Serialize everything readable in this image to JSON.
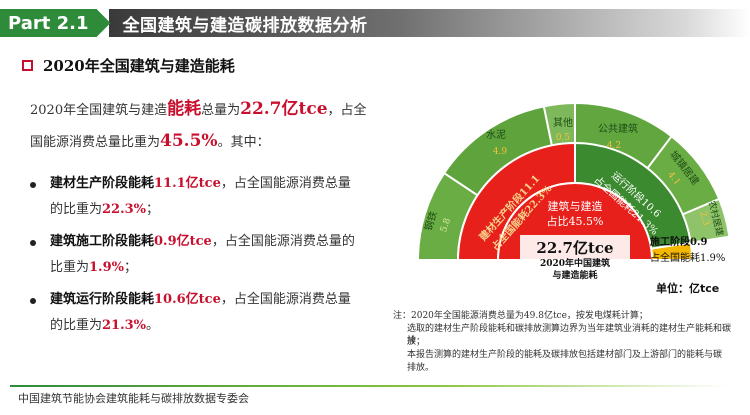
{
  "header": {
    "tag": "Part 2.1",
    "title": "全国建筑与建造碳排放数据分析"
  },
  "section": {
    "title": "2020年全国建筑与建造能耗"
  },
  "intro": {
    "prefix": "2020年全国建筑与建造",
    "keyword": "能耗",
    "mid": "总量为",
    "total": "22.7亿tce",
    "suffix": "，占全",
    "line2_prefix": "国能源消费总量比重为",
    "share": "45.5%",
    "line2_suffix": "。其中："
  },
  "bullets": [
    {
      "title": "建材生产阶段能耗",
      "value": "11.1亿tce",
      "text": "，占全国能源消费总量",
      "line2_prefix": "的比重为",
      "share": "22.3%",
      "line2_suffix": "；"
    },
    {
      "title": "建筑施工阶段能耗",
      "value": "0.9亿tce",
      "text": "，占全国能源消费总量的",
      "line2_prefix": "比重为",
      "share": "1.9%",
      "line2_suffix": "；"
    },
    {
      "title": "建筑运行阶段能耗",
      "value": "10.6亿tce",
      "text": "，占全国能源消费总量",
      "line2_prefix": "的比重为",
      "share": "21.3%",
      "line2_suffix": "。"
    }
  ],
  "chart": {
    "center_line1": "建筑与建造",
    "center_line2": "占比45.5%",
    "total": "22.7亿tce",
    "total_cap1": "2020年中国建筑",
    "total_cap2": "与建造能耗",
    "production_label": "建材生产阶段",
    "production_value": "11.1",
    "production_share": "占全国能耗22.3%",
    "operation_label": "运行阶段10.6",
    "operation_share": "占全国能耗21.3%",
    "construction_label": "施工阶段0.9",
    "construction_share": "占全国能耗1.9%",
    "outer": [
      {
        "name": "钢铁",
        "value": "5.8"
      },
      {
        "name": "水泥",
        "value": "4.9"
      },
      {
        "name": "其他",
        "value": "0.5"
      },
      {
        "name": "公共建筑",
        "value": "4.2"
      },
      {
        "name": "城镇居建",
        "value": "4.1"
      },
      {
        "name": "农村居建",
        "value": "2.3"
      }
    ],
    "colors": {
      "production": "#e8201c",
      "operation": "#3b8a2f",
      "construction": "#f5b800",
      "outer": "#69ab46",
      "outer_light": "#8ec36a"
    }
  },
  "unit": "单位：亿tce",
  "notes": [
    "注：2020年全国能源消费总量为49.8亿tce，按发电煤耗计算；",
    "选取的建材生产阶段能耗和碳排放测算边界为当年建筑业消耗的建材生产能耗和碳排",
    "放；",
    "本报告测算的建材生产阶段的能耗及碳排放包括建材部门及上游部门的能耗与碳",
    "排放。"
  ],
  "footer": "中国建筑节能协会建筑能耗与碳排放数据专委会"
}
